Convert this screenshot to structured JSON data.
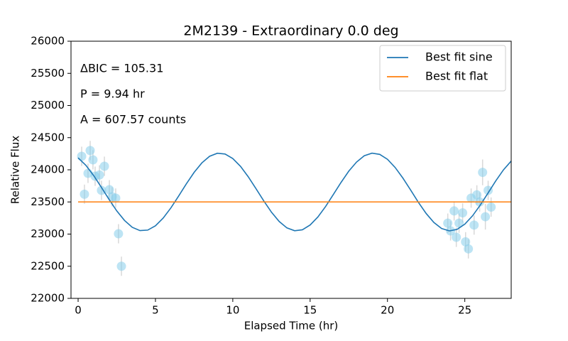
{
  "chart_data": {
    "type": "scatter",
    "title": "2M2139 - Extraordinary 0.0 deg",
    "xlabel": "Elapsed Time (hr)",
    "ylabel": "Relative Flux",
    "annotations": [
      "ΔBIC = 105.31",
      "P = 9.94 hr",
      "A = 607.57 counts"
    ],
    "xlim": [
      -0.46,
      28
    ],
    "ylim": [
      22000,
      26000
    ],
    "xticks": [
      0,
      5,
      10,
      15,
      20,
      25
    ],
    "yticks": [
      22000,
      22500,
      23000,
      23500,
      24000,
      24500,
      25000,
      25500,
      26000
    ],
    "legend": "upper right",
    "points": {
      "color": "#87ceeb",
      "x": [
        0.23,
        0.41,
        0.64,
        0.78,
        0.96,
        1.1,
        1.38,
        1.51,
        1.7,
        2.02,
        2.2,
        2.43,
        2.61,
        2.8,
        23.9,
        24.08,
        24.31,
        24.45,
        24.63,
        24.86,
        25.05,
        25.23,
        25.41,
        25.6,
        25.78,
        25.96,
        26.15,
        26.33,
        26.51,
        26.7
      ],
      "values": [
        24210,
        23620,
        23945,
        24300,
        24155,
        23900,
        23920,
        23680,
        24055,
        23690,
        23580,
        23560,
        23005,
        22500,
        23170,
        23050,
        23360,
        22950,
        23170,
        23330,
        22880,
        22770,
        23560,
        23140,
        23610,
        23500,
        23960,
        23270,
        23680,
        23420
      ],
      "errors": [
        150,
        150,
        150,
        150,
        150,
        150,
        150,
        150,
        150,
        150,
        150,
        150,
        150,
        150,
        150,
        150,
        150,
        150,
        150,
        150,
        150,
        150,
        150,
        150,
        150,
        150,
        200,
        200,
        150,
        150
      ]
    },
    "series": [
      {
        "name": "Best fit sine",
        "color": "#1f77b4",
        "x": [
          0,
          0.5,
          1,
          1.5,
          2,
          2.5,
          3,
          3.5,
          4,
          4.5,
          5,
          5.5,
          6,
          6.5,
          7,
          7.5,
          8,
          8.5,
          9,
          9.5,
          10,
          10.5,
          11,
          11.5,
          12,
          12.5,
          13,
          13.5,
          14,
          14.5,
          15,
          15.5,
          16,
          16.5,
          17,
          17.5,
          18,
          18.5,
          19,
          19.5,
          20,
          20.5,
          21,
          21.5,
          22,
          22.5,
          23,
          23.5,
          24,
          24.5,
          25,
          25.5,
          26,
          26.5,
          27,
          27.5,
          28
        ],
        "values": [
          24186,
          24070,
          23912,
          23729,
          23539,
          23360,
          23212,
          23105,
          23054,
          23062,
          23129,
          23249,
          23408,
          23592,
          23782,
          23960,
          24107,
          24210,
          24257,
          24245,
          24175,
          24053,
          23891,
          23707,
          23517,
          23341,
          23196,
          23096,
          23052,
          23067,
          23141,
          23266,
          23429,
          23615,
          23804,
          23979,
          24120,
          24218,
          24259,
          24240,
          24163,
          24035,
          23870,
          23684,
          23494,
          23321,
          23181,
          23087,
          23050,
          23073,
          23154,
          23284,
          23451,
          23638,
          23827,
          23999,
          24136
        ]
      },
      {
        "name": "Best fit flat",
        "color": "#ff7f0e",
        "x": [
          0,
          28
        ],
        "values": [
          23500,
          23500
        ]
      }
    ]
  }
}
